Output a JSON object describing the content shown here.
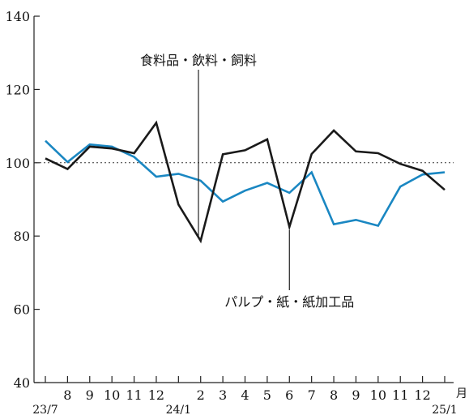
{
  "chart_data": {
    "type": "line",
    "x": [
      "23/7",
      "8",
      "9",
      "10",
      "11",
      "12",
      "24/1",
      "2",
      "3",
      "4",
      "5",
      "6",
      "7",
      "8",
      "9",
      "10",
      "11",
      "12",
      "25/1"
    ],
    "x_tick_labels": [
      "8",
      "9",
      "10",
      "11",
      "12",
      "2",
      "3",
      "4",
      "5",
      "6",
      "7",
      "8",
      "9",
      "10",
      "11",
      "12"
    ],
    "x_year_labels": [
      "23/7",
      "24/1",
      "25/1"
    ],
    "x_unit": "月",
    "ylim": [
      40,
      140
    ],
    "yticks": [
      40,
      60,
      80,
      100,
      120,
      140
    ],
    "reference_line": 100,
    "series": [
      {
        "name": "食料品・飲料・飼料",
        "color": "#1a1a1a",
        "values": [
          101.2,
          98.3,
          104.4,
          103.9,
          102.6,
          110.9,
          88.6,
          78.7,
          102.3,
          103.4,
          106.4,
          82.5,
          102.4,
          108.8,
          103.1,
          102.6,
          99.7,
          97.8,
          92.6
        ]
      },
      {
        "name": "パルプ・紙・紙加工品",
        "color": "#1a87c2",
        "values": [
          106.0,
          100.2,
          105.0,
          104.4,
          101.6,
          96.2,
          97.0,
          95.1,
          89.4,
          92.4,
          94.5,
          91.8,
          97.4,
          83.2,
          84.4,
          82.8,
          93.5,
          96.8,
          97.4
        ]
      }
    ],
    "annotations": [
      {
        "text": "食料品・飲料・飼料",
        "target_series": 0
      },
      {
        "text": "パルプ・紙・紙加工品",
        "target_series": 1
      }
    ]
  }
}
